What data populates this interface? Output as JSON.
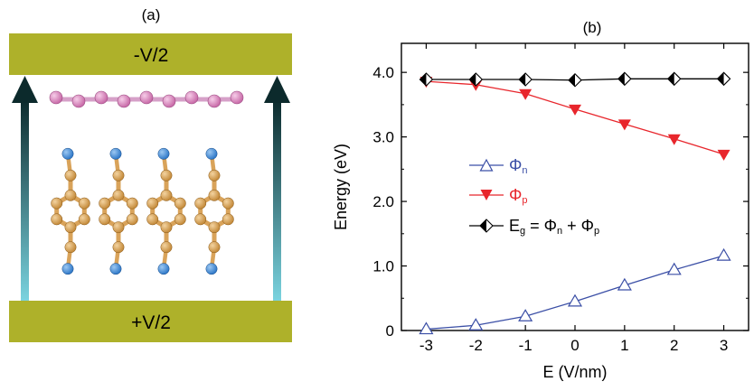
{
  "panel_a": {
    "label": "(a)",
    "top_plate_label": "-V/2",
    "bottom_plate_label": "+V/2",
    "colors": {
      "plate": "#aeb12a",
      "arrow_top": "#0c2a2c",
      "arrow_bottom": "#7ad3df",
      "top_atom": "#c86aa8",
      "top_bond": "#d6a0c8",
      "ring_atom": "#c48a3a",
      "ring_bond": "#d9a35a",
      "end_atom": "#2f78c8"
    }
  },
  "panel_b": {
    "label": "(b)"
  },
  "chart_data": {
    "type": "line",
    "xlabel": "E (V/nm)",
    "ylabel": "Energy (eV)",
    "xlim": [
      -3.5,
      3.5
    ],
    "ylim": [
      0,
      4.45
    ],
    "xticks": [
      -3,
      -2,
      -1,
      0,
      1,
      2,
      3
    ],
    "xtick_labels": [
      "-3",
      "-2",
      "-1",
      "0",
      "1",
      "2",
      "3"
    ],
    "yticks": [
      0,
      1,
      2,
      3,
      4
    ],
    "ytick_labels": [
      "0",
      "1.0",
      "2.0",
      "3.0",
      "4.0"
    ],
    "grid": false,
    "legend_position": "middle-left",
    "series": [
      {
        "name": "Φn",
        "legend_main": "Φ",
        "legend_sub": "n",
        "color": "#3b4fa6",
        "marker": "triangle-up-open",
        "x": [
          -3,
          -2,
          -1,
          0,
          1,
          2,
          3
        ],
        "y": [
          0.02,
          0.08,
          0.22,
          0.45,
          0.7,
          0.94,
          1.16
        ]
      },
      {
        "name": "Φp",
        "legend_main": "Φ",
        "legend_sub": "p",
        "color": "#e8262c",
        "marker": "triangle-down-filled",
        "x": [
          -3,
          -2,
          -1,
          0,
          1,
          2,
          3
        ],
        "y": [
          3.86,
          3.81,
          3.67,
          3.43,
          3.2,
          2.97,
          2.73
        ]
      },
      {
        "name": "Eg = Φn + Φp",
        "legend_main": "E",
        "legend_sub": "g",
        "legend_rest_1": " = Φ",
        "legend_sub_2": "n",
        "legend_rest_2": " + Φ",
        "legend_sub_3": "p",
        "color": "#000000",
        "marker": "diamond-half",
        "x": [
          -3,
          -2,
          -1,
          0,
          1,
          2,
          3
        ],
        "y": [
          3.89,
          3.89,
          3.89,
          3.88,
          3.9,
          3.9,
          3.9
        ]
      }
    ]
  }
}
